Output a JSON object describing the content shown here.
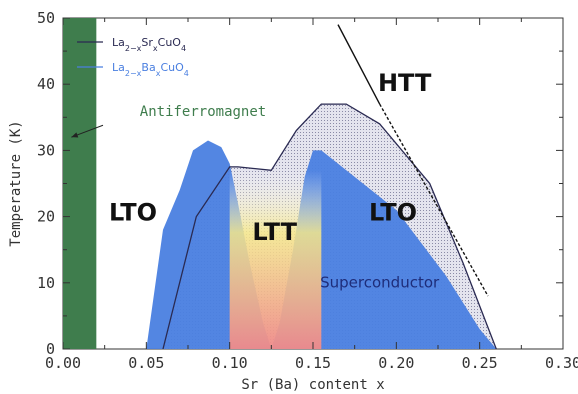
{
  "chart_data": {
    "type": "area",
    "xlabel": "Sr (Ba) content x",
    "ylabel": "Temperature (K)",
    "xlim": [
      0.0,
      0.3
    ],
    "ylim": [
      0,
      50
    ],
    "xticks": [
      "0.00",
      "0.05",
      "0.10",
      "0.15",
      "0.20",
      "0.25",
      "0.30"
    ],
    "yticks": [
      "0",
      "10",
      "20",
      "30",
      "40",
      "50"
    ],
    "grid": false,
    "legend_position": "top-left",
    "colors": {
      "sr": "#2a2a52",
      "ba": "#4a7fe0",
      "antiferromagnet": "#3f7d4d",
      "htt_boundary": "#111111",
      "ltt_gradient_top": "#f7e98a",
      "ltt_gradient_bottom": "#f08a8a"
    },
    "series": [
      {
        "name": "La2-xSrxCuO4",
        "role": "Tc dome",
        "x": [
          0.06,
          0.065,
          0.08,
          0.1,
          0.105,
          0.125,
          0.14,
          0.155,
          0.17,
          0.19,
          0.22,
          0.24,
          0.26
        ],
        "y": [
          0,
          5,
          20,
          27.5,
          27.5,
          27.0,
          33,
          37,
          37,
          34,
          25,
          13,
          0
        ]
      },
      {
        "name": "La2-xBaxCuO4",
        "role": "Tc dome",
        "x": [
          0.05,
          0.06,
          0.07,
          0.078,
          0.087,
          0.095,
          0.1,
          0.105,
          0.112,
          0.12,
          0.125,
          0.13,
          0.138,
          0.145,
          0.15,
          0.155,
          0.17,
          0.2,
          0.23,
          0.25,
          0.26
        ],
        "y": [
          0,
          18,
          24,
          30,
          31.5,
          30.5,
          28,
          22,
          13,
          4,
          0,
          4,
          15,
          26,
          30,
          30,
          27,
          21,
          11,
          3,
          0
        ]
      },
      {
        "name": "LTO/HTT boundary",
        "x": [
          0.165,
          0.19,
          0.255
        ],
        "y": [
          49,
          37,
          8
        ]
      }
    ],
    "regions": [
      {
        "label": "Antiferromagnet",
        "x_range": [
          0.0,
          0.02
        ],
        "y_range": [
          0,
          50
        ]
      },
      {
        "label": "LTT",
        "x_range": [
          0.1,
          0.155
        ]
      }
    ],
    "series_legend": [
      {
        "base": "La",
        "s1": "2−x",
        "mid": "Sr",
        "s2": "x",
        "tail": "CuO",
        "s3": "4",
        "color": "#2a2a52"
      },
      {
        "base": "La",
        "s1": "2−x",
        "mid": "Ba",
        "s2": "x",
        "tail": "CuO",
        "s3": "4",
        "color": "#4a7fe0"
      }
    ],
    "annotations": [
      {
        "id": "htt",
        "text": "HTT",
        "x": 0.205,
        "y": 40
      },
      {
        "id": "lto-left",
        "text": "LTO",
        "x": 0.042,
        "y": 20.5
      },
      {
        "id": "ltt",
        "text": "LTT",
        "x": 0.127,
        "y": 17.5
      },
      {
        "id": "lto-right",
        "text": "LTO",
        "x": 0.198,
        "y": 20.5
      },
      {
        "id": "superconductor",
        "text": "Superconductor",
        "x": 0.19,
        "y": 10
      },
      {
        "id": "antiferromagnet",
        "text": "Antiferromagnet",
        "x": 0.084,
        "y": 35.8,
        "arrow_to": [
          0.005,
          32
        ]
      }
    ]
  }
}
